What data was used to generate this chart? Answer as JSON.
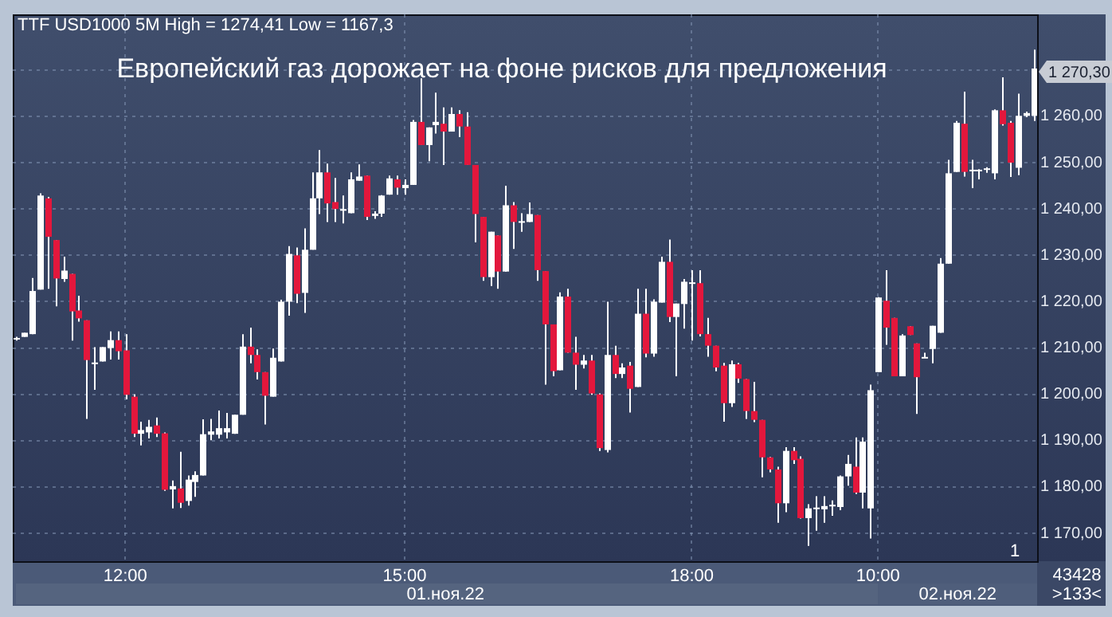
{
  "chart_data": {
    "type": "candlestick",
    "title": "Европейский газ дорожает на фоне рисков для предложения",
    "subtitle": "TTF USD1000 5M High = 1274,41 Low = 1167,3",
    "grid": true,
    "categories": [
      null,
      null,
      null,
      null,
      null,
      null,
      null,
      null,
      null,
      null,
      null,
      null,
      null,
      null,
      "12:00",
      null,
      null,
      null,
      null,
      null,
      null,
      null,
      null,
      null,
      null,
      null,
      null,
      null,
      null,
      null,
      null,
      null,
      null,
      null,
      null,
      null,
      null,
      null,
      null,
      null,
      null,
      null,
      null,
      null,
      null,
      null,
      null,
      null,
      null,
      null,
      "15:00",
      null,
      null,
      null,
      null,
      null,
      null,
      null,
      null,
      null,
      null,
      null,
      null,
      null,
      null,
      null,
      null,
      null,
      null,
      null,
      null,
      null,
      null,
      null,
      null,
      null,
      null,
      null,
      null,
      null,
      null,
      null,
      null,
      null,
      null,
      null,
      null,
      "18:00",
      null,
      null,
      null,
      null,
      null,
      null,
      null,
      null,
      null,
      null,
      null,
      null,
      null,
      null,
      null,
      null,
      null,
      null,
      null,
      null,
      null,
      null,
      null,
      "10:00",
      null,
      null,
      null,
      null,
      null,
      null,
      null,
      null,
      null,
      null,
      null,
      null,
      null,
      null,
      null,
      null,
      null,
      null,
      null,
      null
    ],
    "ohlc": [
      [
        1212,
        1212.4,
        1211.6,
        1212
      ],
      [
        1212.4,
        1213.3,
        1212.4,
        1213.3
      ],
      [
        1213,
        1225.1,
        1213,
        1222.3
      ],
      [
        1222.6,
        1243.4,
        1222.6,
        1242.9
      ],
      [
        1242.3,
        1242.6,
        1222.8,
        1234
      ],
      [
        1233.3,
        1233.3,
        1219,
        1225
      ],
      [
        1224.9,
        1229.7,
        1224.3,
        1226.7
      ],
      [
        1226,
        1226,
        1211.6,
        1217.9
      ],
      [
        1218.1,
        1221.3,
        1215.7,
        1216.4
      ],
      [
        1216,
        1216,
        1194.7,
        1207.4
      ],
      [
        1206.7,
        1210.2,
        1201,
        1206.7
      ],
      [
        1207.1,
        1210.2,
        1207.1,
        1210.2
      ],
      [
        1210,
        1213.6,
        1207.5,
        1211.7
      ],
      [
        1211.7,
        1213.6,
        1207.5,
        1209.3
      ],
      [
        1209.5,
        1213,
        1198.9,
        1199.9
      ],
      [
        1199.5,
        1200,
        1190.8,
        1191.5
      ],
      [
        1191.5,
        1194.1,
        1189,
        1192.3
      ],
      [
        1191.8,
        1194.5,
        1190.5,
        1193
      ],
      [
        1193.3,
        1195,
        1190.8,
        1191.5
      ],
      [
        1191.6,
        1191.8,
        1179.2,
        1179.4
      ],
      [
        1179.5,
        1181.4,
        1175.4,
        1180.2
      ],
      [
        1179.7,
        1187.6,
        1175.5,
        1176.6
      ],
      [
        1177,
        1182.5,
        1176,
        1181.6
      ],
      [
        1181.1,
        1183.4,
        1177.9,
        1182.6
      ],
      [
        1182.5,
        1194.6,
        1182.5,
        1191.4
      ],
      [
        1191.3,
        1194.7,
        1190.1,
        1192
      ],
      [
        1191.3,
        1196.5,
        1190.5,
        1192.7
      ],
      [
        1191.8,
        1196,
        1190.5,
        1192.7
      ],
      [
        1191.5,
        1195.6,
        1191.5,
        1195.6
      ],
      [
        1195.6,
        1213,
        1195.6,
        1210.3
      ],
      [
        1210.3,
        1214.4,
        1206.7,
        1208.5
      ],
      [
        1208.5,
        1209.7,
        1203.2,
        1204.8
      ],
      [
        1204.8,
        1204.8,
        1193.5,
        1199.7
      ],
      [
        1199.5,
        1209.9,
        1199.5,
        1207.9
      ],
      [
        1207.1,
        1220.4,
        1207.1,
        1220
      ],
      [
        1220,
        1232,
        1217,
        1230.3
      ],
      [
        1230,
        1231.7,
        1219.7,
        1221.7
      ],
      [
        1221.9,
        1235.8,
        1217.6,
        1231.2
      ],
      [
        1231.2,
        1247.9,
        1231.2,
        1242.3
      ],
      [
        1242.3,
        1252.7,
        1238.9,
        1247.9
      ],
      [
        1247.9,
        1249.8,
        1237.2,
        1241.2
      ],
      [
        1241.5,
        1246.7,
        1237.2,
        1240
      ],
      [
        1239.8,
        1242.9,
        1236.9,
        1239.8
      ],
      [
        1239.1,
        1247.9,
        1239.1,
        1246.4
      ],
      [
        1246.1,
        1249.6,
        1246.1,
        1247
      ],
      [
        1247.2,
        1247.2,
        1237.6,
        1238.3
      ],
      [
        1238.5,
        1239.5,
        1237.9,
        1239
      ],
      [
        1239,
        1243,
        1238.3,
        1242.9
      ],
      [
        1243.1,
        1247.2,
        1243.1,
        1246.6
      ],
      [
        1246.4,
        1247.2,
        1243.1,
        1244.6
      ],
      [
        1244.5,
        1246.4,
        1243.1,
        1245.2
      ],
      [
        1245.2,
        1259.2,
        1245.2,
        1258.8
      ],
      [
        1258.8,
        1268.2,
        1253.8,
        1253.8
      ],
      [
        1253.8,
        1257.6,
        1250.3,
        1257.6
      ],
      [
        1258.1,
        1265.1,
        1256.3,
        1258.8
      ],
      [
        1258.4,
        1261.9,
        1249.5,
        1256.7
      ],
      [
        1256.7,
        1261.9,
        1256.7,
        1260.5
      ],
      [
        1260.5,
        1261.3,
        1255.5,
        1257.8
      ],
      [
        1257.8,
        1260.9,
        1249.5,
        1249.5
      ],
      [
        1249.5,
        1249.5,
        1232.8,
        1238.9
      ],
      [
        1238.3,
        1238.3,
        1224.5,
        1225.3
      ],
      [
        1225.3,
        1235.1,
        1223.4,
        1235.1
      ],
      [
        1234.3,
        1234.3,
        1222.8,
        1226.5
      ],
      [
        1226.5,
        1245,
        1226.5,
        1240.8
      ],
      [
        1240.8,
        1241.5,
        1231.4,
        1237.2
      ],
      [
        1237.2,
        1239.1,
        1235.1,
        1237.2
      ],
      [
        1237.2,
        1241.4,
        1237.2,
        1238.9
      ],
      [
        1238.7,
        1238.7,
        1224.5,
        1226.8
      ],
      [
        1226.6,
        1226.6,
        1202.1,
        1215.1
      ],
      [
        1215.1,
        1215.1,
        1203.9,
        1205
      ],
      [
        1205.2,
        1222,
        1205.2,
        1221.1
      ],
      [
        1221.1,
        1222.8,
        1209,
        1209
      ],
      [
        1209,
        1212.4,
        1201,
        1206.4
      ],
      [
        1206.4,
        1208.5,
        1205.6,
        1207.3
      ],
      [
        1207.3,
        1208.5,
        1199.9,
        1200.2
      ],
      [
        1200,
        1200.2,
        1187.8,
        1188.4
      ],
      [
        1188,
        1220,
        1187.5,
        1208.5
      ],
      [
        1208.5,
        1210.5,
        1203.5,
        1204.4
      ],
      [
        1204.4,
        1206.7,
        1203.5,
        1205.8
      ],
      [
        1206.2,
        1207,
        1196.1,
        1201.2
      ],
      [
        1201.6,
        1222.8,
        1201.6,
        1217.4
      ],
      [
        1217.4,
        1222.8,
        1208,
        1208.8
      ],
      [
        1208.8,
        1220.5,
        1208.1,
        1220
      ],
      [
        1219.8,
        1229.7,
        1219.8,
        1228.6
      ],
      [
        1228.6,
        1233.4,
        1215.6,
        1216.7
      ],
      [
        1216.7,
        1219.6,
        1203.9,
        1219.6
      ],
      [
        1219.5,
        1224.9,
        1214.2,
        1224.3
      ],
      [
        1224,
        1226.8,
        1211.6,
        1224
      ],
      [
        1224,
        1226.8,
        1212.5,
        1213
      ],
      [
        1213,
        1216.5,
        1208.1,
        1210.5
      ],
      [
        1210.5,
        1210.5,
        1205,
        1205.8
      ],
      [
        1206.2,
        1206.8,
        1194.1,
        1198.1
      ],
      [
        1198.1,
        1207.3,
        1197.3,
        1206.5
      ],
      [
        1206.5,
        1206.8,
        1202.5,
        1203.4
      ],
      [
        1203.3,
        1203.3,
        1194.7,
        1196.4
      ],
      [
        1196.4,
        1202.7,
        1194,
        1194.5
      ],
      [
        1194.5,
        1194.5,
        1182.1,
        1186.4
      ],
      [
        1186.4,
        1186.5,
        1183.2,
        1183.8
      ],
      [
        1183.8,
        1184.4,
        1172.3,
        1176.5
      ],
      [
        1176.5,
        1188.6,
        1174.6,
        1187.8
      ],
      [
        1187.8,
        1188.6,
        1185,
        1185.8
      ],
      [
        1186.1,
        1186.6,
        1173.2,
        1173.3
      ],
      [
        1173.3,
        1176.3,
        1167.3,
        1175.4
      ],
      [
        1175.4,
        1178,
        1170.6,
        1175.4
      ],
      [
        1175.2,
        1178,
        1172.3,
        1175.9
      ],
      [
        1176,
        1177.1,
        1173.8,
        1176
      ],
      [
        1175.7,
        1182.5,
        1175,
        1182.3
      ],
      [
        1182.3,
        1186.9,
        1180.3,
        1185
      ],
      [
        1184.4,
        1190.7,
        1178.5,
        1178.8
      ],
      [
        1178.8,
        1190.7,
        1175.4,
        1189.8
      ],
      [
        1175.4,
        1202.1,
        1168.9,
        1200.9
      ],
      [
        1204.8,
        1221,
        1204.8,
        1220.9
      ],
      [
        1220.2,
        1226.8,
        1210.7,
        1214.4
      ],
      [
        1216.5,
        1216.5,
        1203.9,
        1203.9
      ],
      [
        1203.9,
        1213,
        1203.9,
        1212.7
      ],
      [
        1214.7,
        1214.7,
        1212.8,
        1212.8
      ],
      [
        1211,
        1211,
        1195.8,
        1203.7
      ],
      [
        1207.9,
        1209,
        1207.9,
        1207.9
      ],
      [
        1209.8,
        1214.8,
        1206.7,
        1214.8
      ],
      [
        1213.3,
        1229.4,
        1213.3,
        1228.2
      ],
      [
        1228.2,
        1250.6,
        1228.2,
        1247.7
      ],
      [
        1248,
        1259,
        1248,
        1258.6
      ],
      [
        1258.4,
        1265.3,
        1247,
        1248
      ],
      [
        1248.3,
        1250.6,
        1244.5,
        1248.3
      ],
      [
        1248.3,
        1248.6,
        1246.4,
        1248.3
      ],
      [
        1248.6,
        1249,
        1247.8,
        1248.6
      ],
      [
        1247.7,
        1261.5,
        1246.4,
        1261.3
      ],
      [
        1261.3,
        1268.4,
        1258,
        1258.3
      ],
      [
        1258.6,
        1259,
        1246.9,
        1250
      ],
      [
        1248.9,
        1264.9,
        1247.3,
        1260.1
      ],
      [
        1260.1,
        1261,
        1259.8,
        1260.7
      ],
      [
        1260.1,
        1274.41,
        1259,
        1270.3
      ]
    ],
    "ylim": [
      1164,
      1282
    ],
    "yticks": [
      {
        "value": 1170,
        "label": "1 170,00"
      },
      {
        "value": 1180,
        "label": "1 180,00"
      },
      {
        "value": 1190,
        "label": "1 190,00"
      },
      {
        "value": 1200,
        "label": "1 200,00"
      },
      {
        "value": 1210,
        "label": "1 210,00"
      },
      {
        "value": 1220,
        "label": "1 220,00"
      },
      {
        "value": 1230,
        "label": "1 230,00"
      },
      {
        "value": 1240,
        "label": "1 240,00"
      },
      {
        "value": 1250,
        "label": "1 250,00"
      },
      {
        "value": 1260,
        "label": "1 260,00"
      },
      {
        "value": 1270,
        "label": null
      }
    ],
    "annotations": [
      "01.ноя.22",
      "02.ноя.22",
      "43428",
      ">133<",
      "1",
      "1 270,30"
    ]
  }
}
